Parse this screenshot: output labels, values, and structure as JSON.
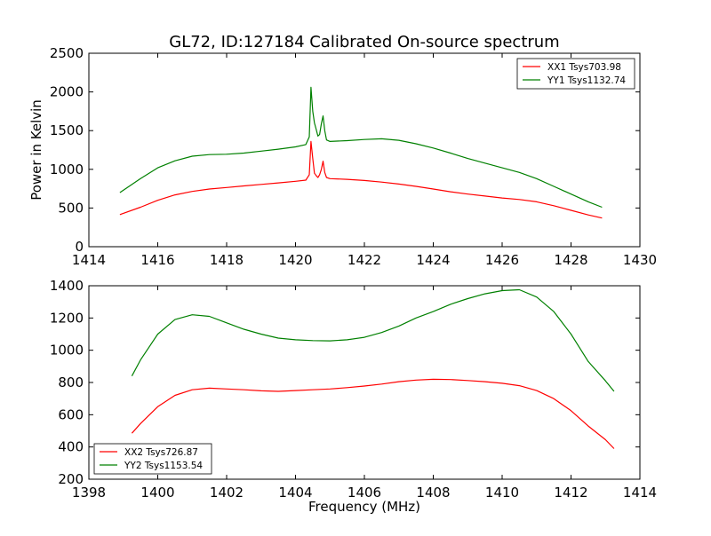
{
  "title": "GL72, ID:127184 Calibrated On-source spectrum",
  "colors": {
    "red": "#ff0000",
    "green": "#008000"
  },
  "chart_data": [
    {
      "type": "line",
      "title": "GL72, ID:127184 Calibrated On-source spectrum",
      "xlabel": "",
      "ylabel": "Power in Kelvin",
      "xlim": [
        1414,
        1430
      ],
      "ylim": [
        0,
        2500
      ],
      "xticks": [
        1414,
        1416,
        1418,
        1420,
        1422,
        1424,
        1426,
        1428,
        1430
      ],
      "yticks": [
        0,
        500,
        1000,
        1500,
        2000,
        2500
      ],
      "grid": false,
      "legend_position": "top-right",
      "series": [
        {
          "name": "XX1 Tsys703.98",
          "color": "#ff0000",
          "x": [
            1414.9,
            1415.5,
            1416,
            1416.5,
            1417,
            1417.5,
            1418,
            1418.5,
            1419,
            1419.5,
            1420,
            1420.3,
            1420.4,
            1420.45,
            1420.5,
            1420.55,
            1420.6,
            1420.65,
            1420.7,
            1420.75,
            1420.8,
            1420.85,
            1420.9,
            1421,
            1421.5,
            1422,
            1422.5,
            1423,
            1423.5,
            1424,
            1424.5,
            1425,
            1425.5,
            1426,
            1426.5,
            1427,
            1427.5,
            1428,
            1428.5,
            1428.9
          ],
          "y": [
            415,
            510,
            600,
            670,
            715,
            745,
            765,
            785,
            805,
            825,
            845,
            860,
            930,
            1360,
            1140,
            950,
            920,
            895,
            930,
            1000,
            1105,
            960,
            895,
            880,
            870,
            855,
            835,
            810,
            780,
            745,
            710,
            680,
            655,
            630,
            610,
            580,
            530,
            470,
            410,
            370
          ]
        },
        {
          "name": "YY1 Tsys1132.74",
          "color": "#008000",
          "x": [
            1414.9,
            1415.5,
            1416,
            1416.5,
            1417,
            1417.5,
            1418,
            1418.5,
            1419,
            1419.5,
            1420,
            1420.3,
            1420.4,
            1420.45,
            1420.5,
            1420.55,
            1420.6,
            1420.65,
            1420.7,
            1420.75,
            1420.8,
            1420.85,
            1420.9,
            1421,
            1421.5,
            1422,
            1422.5,
            1423,
            1423.5,
            1424,
            1424.5,
            1425,
            1425.5,
            1426,
            1426.5,
            1427,
            1427.5,
            1428,
            1428.5,
            1428.9
          ],
          "y": [
            700,
            880,
            1020,
            1110,
            1170,
            1190,
            1195,
            1210,
            1235,
            1260,
            1290,
            1320,
            1420,
            2060,
            1750,
            1600,
            1520,
            1430,
            1450,
            1590,
            1690,
            1500,
            1380,
            1360,
            1370,
            1385,
            1395,
            1375,
            1330,
            1275,
            1210,
            1140,
            1080,
            1020,
            960,
            880,
            780,
            680,
            580,
            510
          ]
        }
      ]
    },
    {
      "type": "line",
      "title": "",
      "xlabel": "Frequency (MHz)",
      "ylabel": "",
      "xlim": [
        1398,
        1414
      ],
      "ylim": [
        200,
        1400
      ],
      "xticks": [
        1398,
        1400,
        1402,
        1404,
        1406,
        1408,
        1410,
        1412,
        1414
      ],
      "yticks": [
        200,
        400,
        600,
        800,
        1000,
        1200,
        1400
      ],
      "grid": false,
      "legend_position": "bottom-left",
      "series": [
        {
          "name": "XX2 Tsys726.87",
          "color": "#ff0000",
          "x": [
            1399.25,
            1399.5,
            1400,
            1400.5,
            1401,
            1401.5,
            1402,
            1402.5,
            1403,
            1403.5,
            1404,
            1404.5,
            1405,
            1405.5,
            1406,
            1406.5,
            1407,
            1407.5,
            1408,
            1408.5,
            1409,
            1409.5,
            1410,
            1410.5,
            1411,
            1411.5,
            1412,
            1412.5,
            1413,
            1413.25
          ],
          "y": [
            485,
            545,
            650,
            720,
            755,
            765,
            760,
            755,
            748,
            745,
            750,
            755,
            760,
            768,
            778,
            790,
            805,
            815,
            820,
            818,
            812,
            805,
            795,
            780,
            750,
            700,
            625,
            530,
            445,
            390
          ]
        },
        {
          "name": "YY2 Tsys1153.54",
          "color": "#008000",
          "x": [
            1399.25,
            1399.5,
            1400,
            1400.5,
            1401,
            1401.5,
            1402,
            1402.5,
            1403,
            1403.5,
            1404,
            1404.5,
            1405,
            1405.5,
            1406,
            1406.5,
            1407,
            1407.5,
            1408,
            1408.5,
            1409,
            1409.5,
            1410,
            1410.5,
            1411,
            1411.5,
            1412,
            1412.5,
            1413,
            1413.25
          ],
          "y": [
            840,
            940,
            1100,
            1190,
            1220,
            1210,
            1170,
            1130,
            1100,
            1075,
            1065,
            1060,
            1058,
            1065,
            1080,
            1110,
            1150,
            1200,
            1240,
            1285,
            1320,
            1350,
            1370,
            1375,
            1330,
            1240,
            1100,
            930,
            810,
            745
          ]
        }
      ]
    }
  ]
}
